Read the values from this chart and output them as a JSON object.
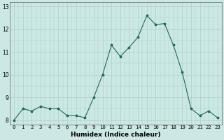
{
  "x": [
    0,
    1,
    2,
    3,
    4,
    5,
    6,
    7,
    8,
    9,
    10,
    11,
    12,
    13,
    14,
    15,
    16,
    17,
    18,
    19,
    20,
    21,
    22,
    23
  ],
  "y": [
    8.0,
    8.5,
    8.4,
    8.6,
    8.5,
    8.5,
    8.2,
    8.2,
    8.1,
    9.0,
    10.0,
    11.3,
    10.8,
    11.2,
    11.65,
    12.6,
    12.2,
    12.25,
    11.3,
    10.1,
    8.5,
    8.2,
    8.4,
    8.1
  ],
  "line_color": "#1e6b5e",
  "marker": "*",
  "bg_color": "#cce8e4",
  "grid_color": "#aacfcb",
  "xlabel": "Humidex (Indice chaleur)",
  "ylim": [
    7.8,
    13.2
  ],
  "xlim": [
    -0.5,
    23.5
  ],
  "yticks": [
    8,
    9,
    10,
    11,
    12,
    13
  ],
  "xticks": [
    0,
    1,
    2,
    3,
    4,
    5,
    6,
    7,
    8,
    9,
    10,
    11,
    12,
    13,
    14,
    15,
    16,
    17,
    18,
    19,
    20,
    21,
    22,
    23
  ],
  "xlabel_fontsize": 6.5,
  "tick_fontsize": 5.2,
  "ytick_fontsize": 5.5
}
